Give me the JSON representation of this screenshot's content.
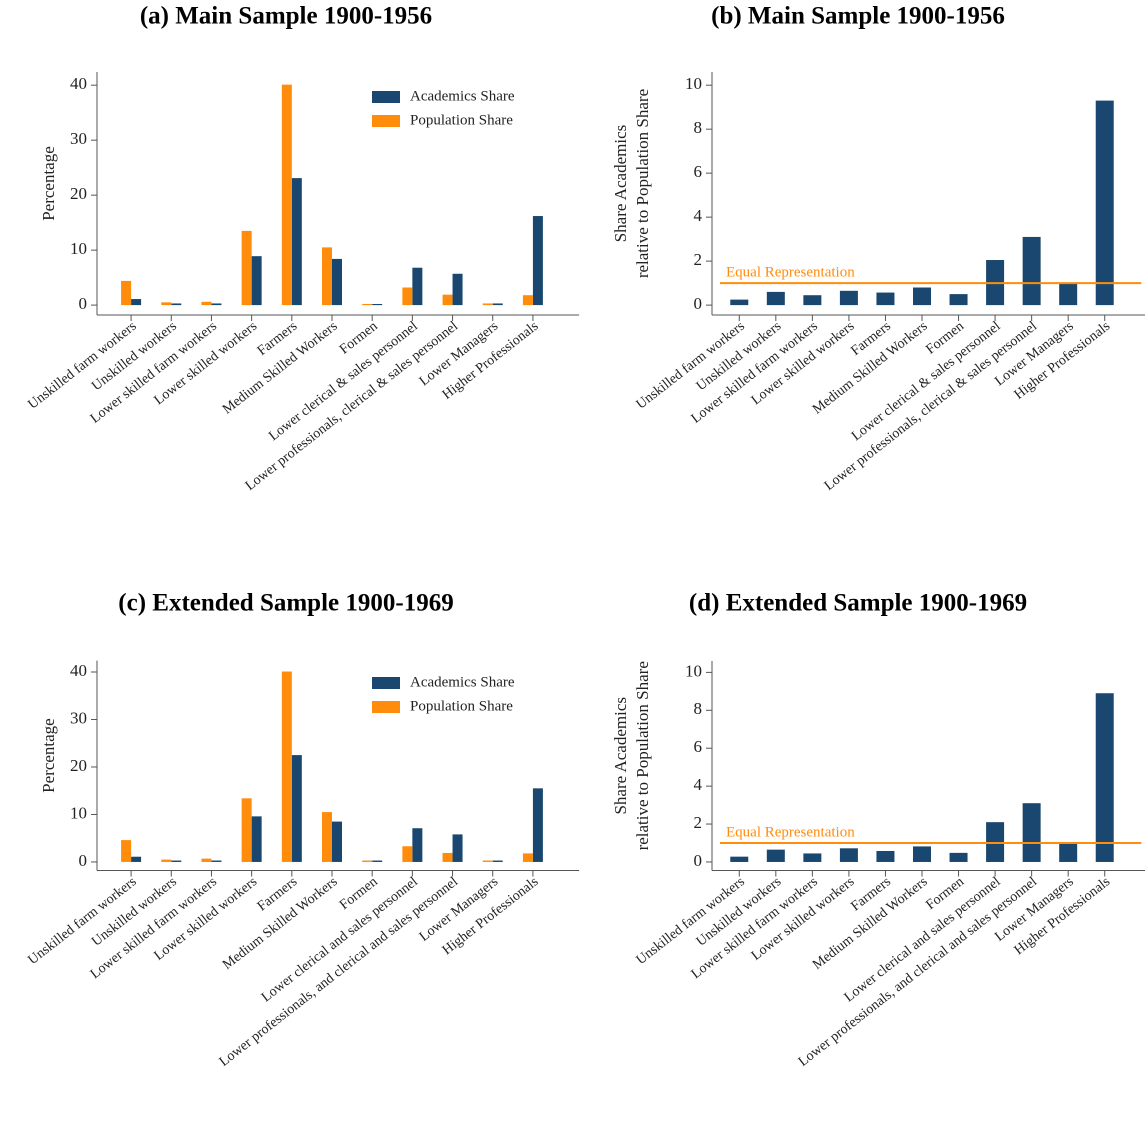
{
  "chart_data": [
    {
      "type": "bar",
      "title": "(a) Main Sample 1900-1956",
      "ylabel": [
        "Percentage"
      ],
      "categories": [
        "Unskilled farm workers",
        "Unskilled workers",
        "Lower skilled farm workers",
        "Lower skilled workers",
        "Farmers",
        "Medium Skilled Workers",
        "Formen",
        "Lower clerical & sales personnel",
        "Lower professionals, clerical & sales personnel",
        "Lower Managers",
        "Higher Professionals"
      ],
      "series": [
        {
          "name": "Academics Share",
          "color": "#1a476f",
          "values": [
            1.1,
            0.3,
            0.3,
            8.9,
            23.1,
            8.4,
            0.2,
            6.8,
            5.7,
            0.3,
            16.2
          ]
        },
        {
          "name": "Population Share",
          "color": "#ff8c0a",
          "values": [
            4.4,
            0.5,
            0.6,
            13.5,
            40.1,
            10.5,
            0.2,
            3.2,
            1.9,
            0.3,
            1.8
          ]
        }
      ],
      "ylim": [
        -1.8,
        42.4
      ],
      "yticks": [
        0,
        10,
        20,
        30,
        40
      ],
      "legend": "upper right"
    },
    {
      "type": "bar",
      "title": "(b) Main Sample 1900-1956",
      "ylabel": [
        "Share Academics",
        "relative to Population Share"
      ],
      "categories": [
        "Unskilled farm workers",
        "Unskilled workers",
        "Lower skilled farm workers",
        "Lower skilled workers",
        "Farmers",
        "Medium Skilled Workers",
        "Formen",
        "Lower clerical & sales personnel",
        "Lower professionals, clerical & sales personnel",
        "Lower Managers",
        "Higher Professionals"
      ],
      "values": [
        0.25,
        0.6,
        0.45,
        0.65,
        0.57,
        0.8,
        0.5,
        2.05,
        3.1,
        1.0,
        9.3
      ],
      "color": "#1a476f",
      "hline": {
        "value": 1,
        "label": "Equal Representation",
        "color": "#ff8c0a"
      },
      "ylim": [
        -0.45,
        10.6
      ],
      "yticks": [
        0,
        2,
        4,
        6,
        8,
        10
      ]
    },
    {
      "type": "bar",
      "title": "(c) Extended Sample 1900-1969",
      "ylabel": [
        "Percentage"
      ],
      "categories": [
        "Unskilled farm workers",
        "Unskilled workers",
        "Lower skilled farm workers",
        "Lower skilled workers",
        "Farmers",
        "Medium Skilled Workers",
        "Formen",
        "Lower clerical and sales personnel",
        "Lower professionals, and clerical and sales personnel",
        "Lower Managers",
        "Higher Professionals"
      ],
      "series": [
        {
          "name": "Academics Share",
          "color": "#1a476f",
          "values": [
            1.1,
            0.3,
            0.3,
            9.6,
            22.5,
            8.5,
            0.3,
            7.1,
            5.8,
            0.3,
            15.5
          ]
        },
        {
          "name": "Population Share",
          "color": "#ff8c0a",
          "values": [
            4.6,
            0.5,
            0.7,
            13.4,
            40.1,
            10.5,
            0.3,
            3.3,
            1.9,
            0.3,
            1.8
          ]
        }
      ],
      "ylim": [
        -1.8,
        42.4
      ],
      "yticks": [
        0,
        10,
        20,
        30,
        40
      ],
      "legend": "upper right"
    },
    {
      "type": "bar",
      "title": "(d) Extended Sample 1900-1969",
      "ylabel": [
        "Share Academics",
        "relative to Population Share"
      ],
      "categories": [
        "Unskilled farm workers",
        "Unskilled workers",
        "Lower skilled farm workers",
        "Lower skilled workers",
        "Farmers",
        "Medium Skilled Workers",
        "Formen",
        "Lower clerical and sales personnel",
        "Lower professionals, and clerical and sales personnel",
        "Lower Managers",
        "Higher Professionals"
      ],
      "values": [
        0.28,
        0.65,
        0.45,
        0.72,
        0.58,
        0.82,
        0.48,
        2.1,
        3.1,
        0.98,
        8.9
      ],
      "color": "#1a476f",
      "hline": {
        "value": 1,
        "label": "Equal Representation",
        "color": "#ff8c0a"
      },
      "ylim": [
        -0.45,
        10.6
      ],
      "yticks": [
        0,
        2,
        4,
        6,
        8,
        10
      ]
    }
  ]
}
